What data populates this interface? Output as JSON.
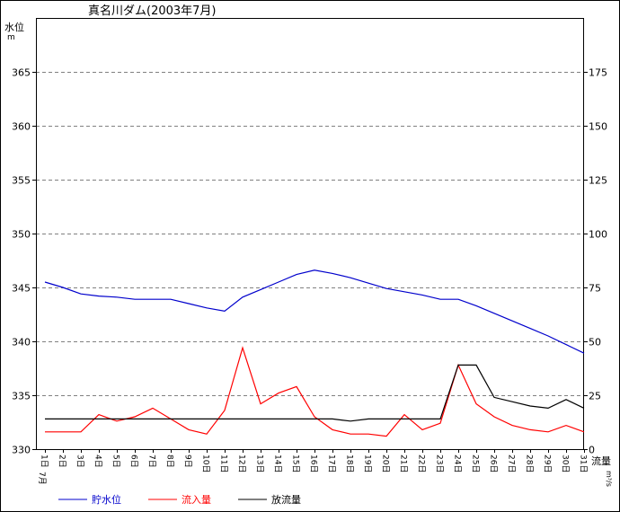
{
  "chart_data": {
    "type": "line",
    "title": "真名川ダム(2003年7月)",
    "y_left_label": "水位",
    "y_left_unit": "m",
    "y_right_label": "流量",
    "y_right_unit": "m³/s",
    "y_left_ticks": [
      "330",
      "335",
      "340",
      "345",
      "350",
      "355",
      "360",
      "365"
    ],
    "y_right_ticks": [
      "0",
      "25",
      "50",
      "75",
      "100",
      "125",
      "150",
      "175"
    ],
    "ylim_left": [
      330,
      370
    ],
    "ylim_right": [
      0,
      200
    ],
    "month_label": "7月",
    "categories": [
      "1日",
      "2日",
      "3日",
      "4日",
      "5日",
      "6日",
      "7日",
      "8日",
      "9日",
      "10日",
      "11日",
      "12日",
      "13日",
      "14日",
      "15日",
      "16日",
      "17日",
      "18日",
      "19日",
      "20日",
      "21日",
      "22日",
      "23日",
      "24日",
      "25日",
      "26日",
      "27日",
      "28日",
      "29日",
      "30日",
      "31日"
    ],
    "grid": true,
    "legend_position": "bottom",
    "series": [
      {
        "name": "貯水位",
        "axis": "left",
        "color": "#0000cc",
        "values": [
          345.5,
          345.0,
          344.4,
          344.2,
          344.1,
          343.9,
          343.9,
          343.9,
          343.5,
          343.1,
          342.8,
          344.1,
          344.8,
          345.5,
          346.2,
          346.6,
          346.3,
          345.9,
          345.4,
          344.9,
          344.6,
          344.3,
          343.9,
          343.9,
          343.3,
          342.6,
          341.9,
          341.2,
          340.5,
          339.7,
          338.9
        ]
      },
      {
        "name": "流入量",
        "axis": "right",
        "color": "#ff0000",
        "values": [
          8,
          8,
          8,
          16,
          13,
          15,
          19,
          14,
          9,
          7,
          18,
          47,
          21,
          26,
          29,
          15,
          9,
          7,
          7,
          6,
          16,
          9,
          12,
          39,
          21,
          15,
          11,
          9,
          8,
          11,
          8
        ]
      },
      {
        "name": "放流量",
        "axis": "right",
        "color": "#000000",
        "values": [
          14,
          14,
          14,
          14,
          14,
          14,
          14,
          14,
          14,
          14,
          14,
          14,
          14,
          14,
          14,
          14,
          14,
          13,
          14,
          14,
          14,
          14,
          14,
          39,
          39,
          24,
          22,
          20,
          19,
          23,
          19
        ]
      }
    ]
  }
}
